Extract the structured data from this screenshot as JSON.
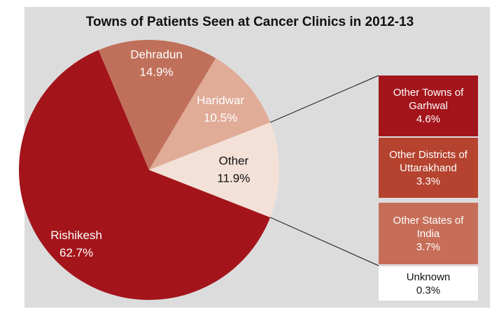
{
  "chart_data": {
    "type": "pie",
    "title": "Towns of Patients Seen at Cancer Clinics in 2012-13",
    "categories": [
      "Rishikesh",
      "Dehradun",
      "Haridwar",
      "Other"
    ],
    "values": [
      62.7,
      14.9,
      10.5,
      11.9
    ],
    "value_labels": [
      "62.7%",
      "14.9%",
      "10.5%",
      "11.9%"
    ],
    "colors": [
      "#a3151b",
      "#c0705a",
      "#e0ab97",
      "#f3e1d7"
    ],
    "breakdown": {
      "categories": [
        "Other Towns of Garhwal",
        "Other Districts of Uttarakhand",
        "Other States of India",
        "Unknown"
      ],
      "values": [
        4.6,
        3.3,
        3.7,
        0.3
      ],
      "value_labels": [
        "4.6%",
        "3.3%",
        "3.7%",
        "0.3%"
      ],
      "colors": [
        "#a3151b",
        "#b5432f",
        "#c76e59",
        "#ffffff"
      ]
    }
  }
}
